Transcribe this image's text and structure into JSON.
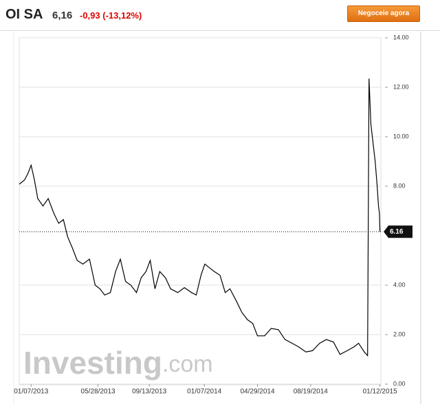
{
  "header": {
    "name": "OI SA",
    "price": "6,16",
    "change": "-0,93 (-13,12%)",
    "button": "Negoceie agora"
  },
  "chart_data": {
    "type": "line",
    "color": "#000000",
    "x": [
      "12/13/2012",
      "12/24/2012",
      "12/31/2012",
      "01/07/2013",
      "01/14/2013",
      "01/21/2013",
      "02/01/2013",
      "02/12/2013",
      "02/24/2013",
      "03/06/2013",
      "03/16/2013",
      "03/25/2013",
      "04/04/2013",
      "04/14/2013",
      "04/26/2013",
      "05/10/2013",
      "05/22/2013",
      "06/01/2013",
      "06/11/2013",
      "06/23/2013",
      "07/04/2013",
      "07/14/2013",
      "07/25/2013",
      "08/05/2013",
      "08/17/2013",
      "08/27/2013",
      "09/06/2013",
      "09/15/2013",
      "09/25/2013",
      "10/05/2013",
      "10/17/2013",
      "10/28/2013",
      "11/12/2013",
      "11/26/2013",
      "12/11/2013",
      "12/21/2013",
      "12/31/2013",
      "01/08/2014",
      "01/18/2014",
      "01/28/2014",
      "02/09/2014",
      "02/20/2014",
      "03/02/2014",
      "03/17/2014",
      "03/27/2014",
      "04/08/2014",
      "04/19/2014",
      "04/29/2014",
      "05/14/2014",
      "05/28/2014",
      "06/12/2014",
      "06/26/2014",
      "07/11/2014",
      "07/25/2014",
      "08/09/2014",
      "08/23/2014",
      "09/07/2014",
      "09/21/2014",
      "10/06/2014",
      "10/20/2014",
      "11/04/2014",
      "11/18/2014",
      "11/28/2014",
      "12/10/2014",
      "12/17/2014",
      "12/20/2014",
      "12/24/2014",
      "12/27/2014",
      "01/02/2015",
      "01/06/2015",
      "01/09/2015",
      "01/11/2015",
      "01/12/2015"
    ],
    "values": [
      8.08,
      8.25,
      8.5,
      8.85,
      8.25,
      7.5,
      7.2,
      7.5,
      6.9,
      6.5,
      6.65,
      5.95,
      5.5,
      5.0,
      4.85,
      5.05,
      4.0,
      3.85,
      3.6,
      3.7,
      4.55,
      5.05,
      4.15,
      4.0,
      3.7,
      4.3,
      4.55,
      5.0,
      3.85,
      4.55,
      4.3,
      3.85,
      3.7,
      3.9,
      3.7,
      3.6,
      4.4,
      4.85,
      4.7,
      4.55,
      4.4,
      3.7,
      3.85,
      3.3,
      2.9,
      2.6,
      2.45,
      1.95,
      1.95,
      2.25,
      2.2,
      1.8,
      1.65,
      1.5,
      1.3,
      1.35,
      1.65,
      1.8,
      1.7,
      1.2,
      1.35,
      1.5,
      1.65,
      1.3,
      1.15,
      12.35,
      10.5,
      10.0,
      9.0,
      8.05,
      7.2,
      6.9,
      6.16
    ],
    "xlim": [
      "12/13/2012",
      "01/14/2015"
    ],
    "xticks": [
      "01/07/2013",
      "05/28/2013",
      "09/13/2013",
      "01/07/2014",
      "04/29/2014",
      "08/19/2014",
      "01/12/2015"
    ],
    "ylim": [
      0,
      14
    ],
    "yticks": [
      {
        "value": 0,
        "label": "0.00"
      },
      {
        "value": 2,
        "label": "2.00"
      },
      {
        "value": 4,
        "label": "4.00"
      },
      {
        "value": 8,
        "label": "8.00"
      },
      {
        "value": 10,
        "label": "10.00"
      },
      {
        "value": 12,
        "label": "12.00"
      },
      {
        "value": 14,
        "label": "14.00"
      }
    ],
    "grid": true,
    "last_label": "6.16",
    "watermark": [
      "Investing",
      ".com"
    ]
  }
}
